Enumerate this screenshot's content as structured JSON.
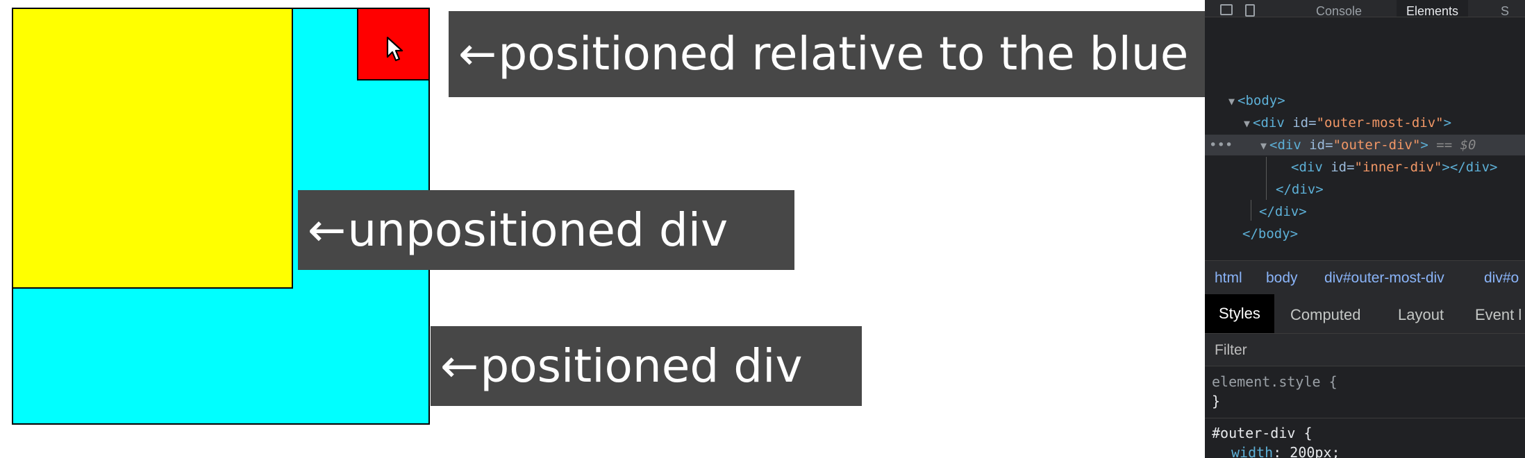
{
  "captions": {
    "arrow": "←",
    "positioned_relative": "positioned relative to the blue square",
    "unpositioned": "unpositioned div",
    "positioned": "positioned div"
  },
  "devtools": {
    "top_tabs": [
      "Console",
      "Elements",
      "S"
    ],
    "dom": {
      "body": "<body>",
      "outer_most_open_tag": "<div ",
      "outer_most_attr": "id=",
      "outer_most_val": "\"outer-most-div\"",
      "outer_most_close": ">",
      "outer_open_tag": "<div ",
      "outer_attr": "id=",
      "outer_val": "\"outer-div\"",
      "outer_close": ">",
      "outer_eq": " == $0",
      "inner_open_tag": "<div ",
      "inner_attr": "id=",
      "inner_val": "\"inner-div\"",
      "inner_close": "></div>",
      "div_close_1": "</div>",
      "div_close_2": "</div>",
      "div_close_3": "</body>",
      "dots": "•••"
    },
    "breadcrumb": [
      "html",
      "body",
      "div#outer-most-div",
      "div#o"
    ],
    "subtabs": [
      "Styles",
      "Computed",
      "Layout",
      "Event l"
    ],
    "filter_placeholder": "Filter",
    "styles": {
      "element_style_selector": "element.style {",
      "element_style_close": "}",
      "outer_div_selector": "#outer-div {",
      "prop_name": "width",
      "prop_value": ": 200px;"
    }
  },
  "colors": {
    "blue_square": "#00ffff",
    "yellow_square": "#ffff00",
    "red_square": "#ff0000",
    "caption_bg": "#474747",
    "devtools_bg": "#202124"
  },
  "icons": {
    "cursor": "pointer-cursor-icon"
  }
}
